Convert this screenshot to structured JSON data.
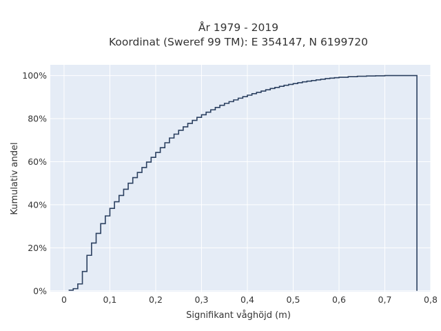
{
  "chart_data": {
    "type": "line",
    "step": true,
    "title_line1": "År 1979 - 2019",
    "title_line2": "Koordinat (Sweref 99 TM): E 354147, N 6199720",
    "xlabel": "Signifikant våghöjd (m)",
    "ylabel": "Kumulativ andel",
    "xlim": [
      -0.03,
      0.8
    ],
    "ylim": [
      -0.004,
      1.05
    ],
    "x_ticks": [
      0,
      0.1,
      0.2,
      0.3,
      0.4,
      0.5,
      0.6,
      0.7,
      0.8
    ],
    "x_tick_labels": [
      "0",
      "0,1",
      "0,2",
      "0,3",
      "0,4",
      "0,5",
      "0,6",
      "0,7",
      "0,8"
    ],
    "y_ticks": [
      0,
      0.2,
      0.4,
      0.6,
      0.8,
      1.0
    ],
    "y_tick_labels": [
      "0%",
      "20%",
      "40%",
      "60%",
      "80%",
      "100%"
    ],
    "grid": true,
    "background_color": "#e5ecf6",
    "line_color": "#2a3f5f",
    "series": [
      {
        "x": [
          0.01,
          0.02,
          0.03,
          0.04,
          0.05,
          0.06,
          0.07,
          0.08,
          0.09,
          0.1,
          0.11,
          0.12,
          0.13,
          0.14,
          0.15,
          0.16,
          0.17,
          0.18,
          0.19,
          0.2,
          0.21,
          0.22,
          0.23,
          0.24,
          0.25,
          0.26,
          0.27,
          0.28,
          0.29,
          0.3,
          0.31,
          0.32,
          0.33,
          0.34,
          0.35,
          0.36,
          0.37,
          0.38,
          0.39,
          0.4,
          0.41,
          0.42,
          0.43,
          0.44,
          0.45,
          0.46,
          0.47,
          0.48,
          0.49,
          0.5,
          0.51,
          0.52,
          0.53,
          0.54,
          0.55,
          0.56,
          0.57,
          0.58,
          0.59,
          0.6,
          0.62,
          0.64,
          0.66,
          0.68,
          0.7,
          0.72,
          0.74,
          0.77
        ],
        "y": [
          0.003,
          0.01,
          0.032,
          0.09,
          0.165,
          0.222,
          0.267,
          0.312,
          0.348,
          0.383,
          0.414,
          0.443,
          0.472,
          0.5,
          0.526,
          0.55,
          0.573,
          0.598,
          0.62,
          0.643,
          0.665,
          0.688,
          0.71,
          0.728,
          0.746,
          0.762,
          0.778,
          0.792,
          0.806,
          0.818,
          0.83,
          0.841,
          0.852,
          0.862,
          0.871,
          0.879,
          0.887,
          0.895,
          0.902,
          0.909,
          0.916,
          0.922,
          0.928,
          0.934,
          0.94,
          0.945,
          0.95,
          0.955,
          0.959,
          0.963,
          0.967,
          0.971,
          0.974,
          0.977,
          0.98,
          0.983,
          0.986,
          0.988,
          0.99,
          0.992,
          0.995,
          0.997,
          0.998,
          0.999,
          1.0,
          1.0,
          1.0,
          1.0
        ]
      }
    ]
  }
}
